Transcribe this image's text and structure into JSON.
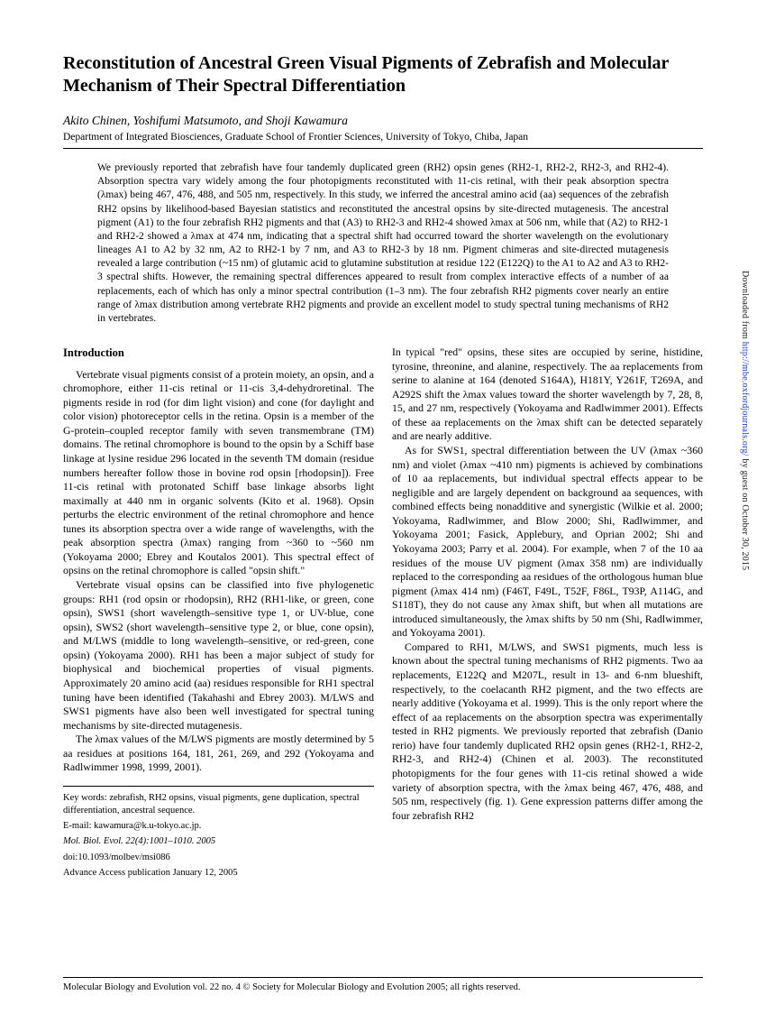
{
  "title": "Reconstitution of Ancestral Green Visual Pigments of Zebrafish and Molecular Mechanism of Their Spectral Differentiation",
  "authors": "Akito Chinen, Yoshifumi Matsumoto, and Shoji Kawamura",
  "affiliation": "Department of Integrated Biosciences, Graduate School of Frontier Sciences, University of Tokyo, Chiba, Japan",
  "abstract": "We previously reported that zebrafish have four tandemly duplicated green (RH2) opsin genes (RH2-1, RH2-2, RH2-3, and RH2-4). Absorption spectra vary widely among the four photopigments reconstituted with 11-cis retinal, with their peak absorption spectra (λmax) being 467, 476, 488, and 505 nm, respectively. In this study, we inferred the ancestral amino acid (aa) sequences of the zebrafish RH2 opsins by likelihood-based Bayesian statistics and reconstituted the ancestral opsins by site-directed mutagenesis. The ancestral pigment (A1) to the four zebrafish RH2 pigments and that (A3) to RH2-3 and RH2-4 showed λmax at 506 nm, while that (A2) to RH2-1 and RH2-2 showed a λmax at 474 nm, indicating that a spectral shift had occurred toward the shorter wavelength on the evolutionary lineages A1 to A2 by 32 nm, A2 to RH2-1 by 7 nm, and A3 to RH2-3 by 18 nm. Pigment chimeras and site-directed mutagenesis revealed a large contribution (~15 nm) of glutamic acid to glutamine substitution at residue 122 (E122Q) to the A1 to A2 and A3 to RH2-3 spectral shifts. However, the remaining spectral differences appeared to result from complex interactive effects of a number of aa replacements, each of which has only a minor spectral contribution (1–3 nm). The four zebrafish RH2 pigments cover nearly an entire range of λmax distribution among vertebrate RH2 pigments and provide an excellent model to study spectral tuning mechanisms of RH2 in vertebrates.",
  "intro_heading": "Introduction",
  "left": {
    "p1": "Vertebrate visual pigments consist of a protein moiety, an opsin, and a chromophore, either 11-cis retinal or 11-cis 3,4-dehydroretinal. The pigments reside in rod (for dim light vision) and cone (for daylight and color vision) photoreceptor cells in the retina. Opsin is a member of the G-protein–coupled receptor family with seven transmembrane (TM) domains. The retinal chromophore is bound to the opsin by a Schiff base linkage at lysine residue 296 located in the seventh TM domain (residue numbers hereafter follow those in bovine rod opsin [rhodopsin]). Free 11-cis retinal with protonated Schiff base linkage absorbs light maximally at 440 nm in organic solvents (Kito et al. 1968). Opsin perturbs the electric environment of the retinal chromophore and hence tunes its absorption spectra over a wide range of wavelengths, with the peak absorption spectra (λmax) ranging from ~360 to ~560 nm (Yokoyama 2000; Ebrey and Koutalos 2001). This spectral effect of opsins on the retinal chromophore is called \"opsin shift.\"",
    "p2": "Vertebrate visual opsins can be classified into five phylogenetic groups: RH1 (rod opsin or rhodopsin), RH2 (RH1-like, or green, cone opsin), SWS1 (short wavelength–sensitive type 1, or UV-blue, cone opsin), SWS2 (short wavelength–sensitive type 2, or blue, cone opsin), and M/LWS (middle to long wavelength–sensitive, or red-green, cone opsin) (Yokoyama 2000). RH1 has been a major subject of study for biophysical and biochemical properties of visual pigments. Approximately 20 amino acid (aa) residues responsible for RH1 spectral tuning have been identified (Takahashi and Ebrey 2003). M/LWS and SWS1 pigments have also been well investigated for spectral tuning mechanisms by site-directed mutagenesis.",
    "p3": "The λmax values of the M/LWS pigments are mostly determined by 5 aa residues at positions 164, 181, 261, 269, and 292 (Yokoyama and Radlwimmer 1998, 1999, 2001)."
  },
  "right": {
    "p1": "In typical \"red\" opsins, these sites are occupied by serine, histidine, tyrosine, threonine, and alanine, respectively. The aa replacements from serine to alanine at 164 (denoted S164A), H181Y, Y261F, T269A, and A292S shift the λmax values toward the shorter wavelength by 7, 28, 8, 15, and 27 nm, respectively (Yokoyama and Radlwimmer 2001). Effects of these aa replacements on the λmax shift can be detected separately and are nearly additive.",
    "p2": "As for SWS1, spectral differentiation between the UV (λmax ~360 nm) and violet (λmax ~410 nm) pigments is achieved by combinations of 10 aa replacements, but individual spectral effects appear to be negligible and are largely dependent on background aa sequences, with combined effects being nonadditive and synergistic (Wilkie et al. 2000; Yokoyama, Radlwimmer, and Blow 2000; Shi, Radlwimmer, and Yokoyama 2001; Fasick, Applebury, and Oprian 2002; Shi and Yokoyama 2003; Parry et al. 2004). For example, when 7 of the 10 aa residues of the mouse UV pigment (λmax 358 nm) are individually replaced to the corresponding aa residues of the orthologous human blue pigment (λmax 414 nm) (F46T, F49L, T52F, F86L, T93P, A114G, and S118T), they do not cause any λmax shift, but when all mutations are introduced simultaneously, the λmax shifts by 50 nm (Shi, Radlwimmer, and Yokoyama 2001).",
    "p3": "Compared to RH1, M/LWS, and SWS1 pigments, much less is known about the spectral tuning mechanisms of RH2 pigments. Two aa replacements, E122Q and M207L, result in 13- and 6-nm blueshift, respectively, to the coelacanth RH2 pigment, and the two effects are nearly additive (Yokoyama et al. 1999). This is the only report where the effect of aa replacements on the absorption spectra was experimentally tested in RH2 pigments. We previously reported that zebrafish (Danio rerio) have four tandemly duplicated RH2 opsin genes (RH2-1, RH2-2, RH2-3, and RH2-4) (Chinen et al. 2003). The reconstituted photopigments for the four genes with 11-cis retinal showed a wide variety of absorption spectra, with the λmax being 467, 476, 488, and 505 nm, respectively (fig. 1). Gene expression patterns differ among the four zebrafish RH2"
  },
  "keywords": "Key words: zebrafish, RH2 opsins, visual pigments, gene duplication, spectral differentiation, ancestral sequence.",
  "email": "E-mail: kawamura@k.u-tokyo.ac.jp.",
  "journal": "Mol. Biol. Evol. 22(4):1001–1010. 2005",
  "doi": "doi:10.1093/molbev/msi086",
  "advance": "Advance Access publication January 12, 2005",
  "footer": "Molecular Biology and Evolution vol. 22 no. 4 © Society for Molecular Biology and Evolution 2005; all rights reserved.",
  "side_prefix": "Downloaded from ",
  "side_link": "http://mbe.oxfordjournals.org/",
  "side_suffix": " by guest on October 30, 2015"
}
